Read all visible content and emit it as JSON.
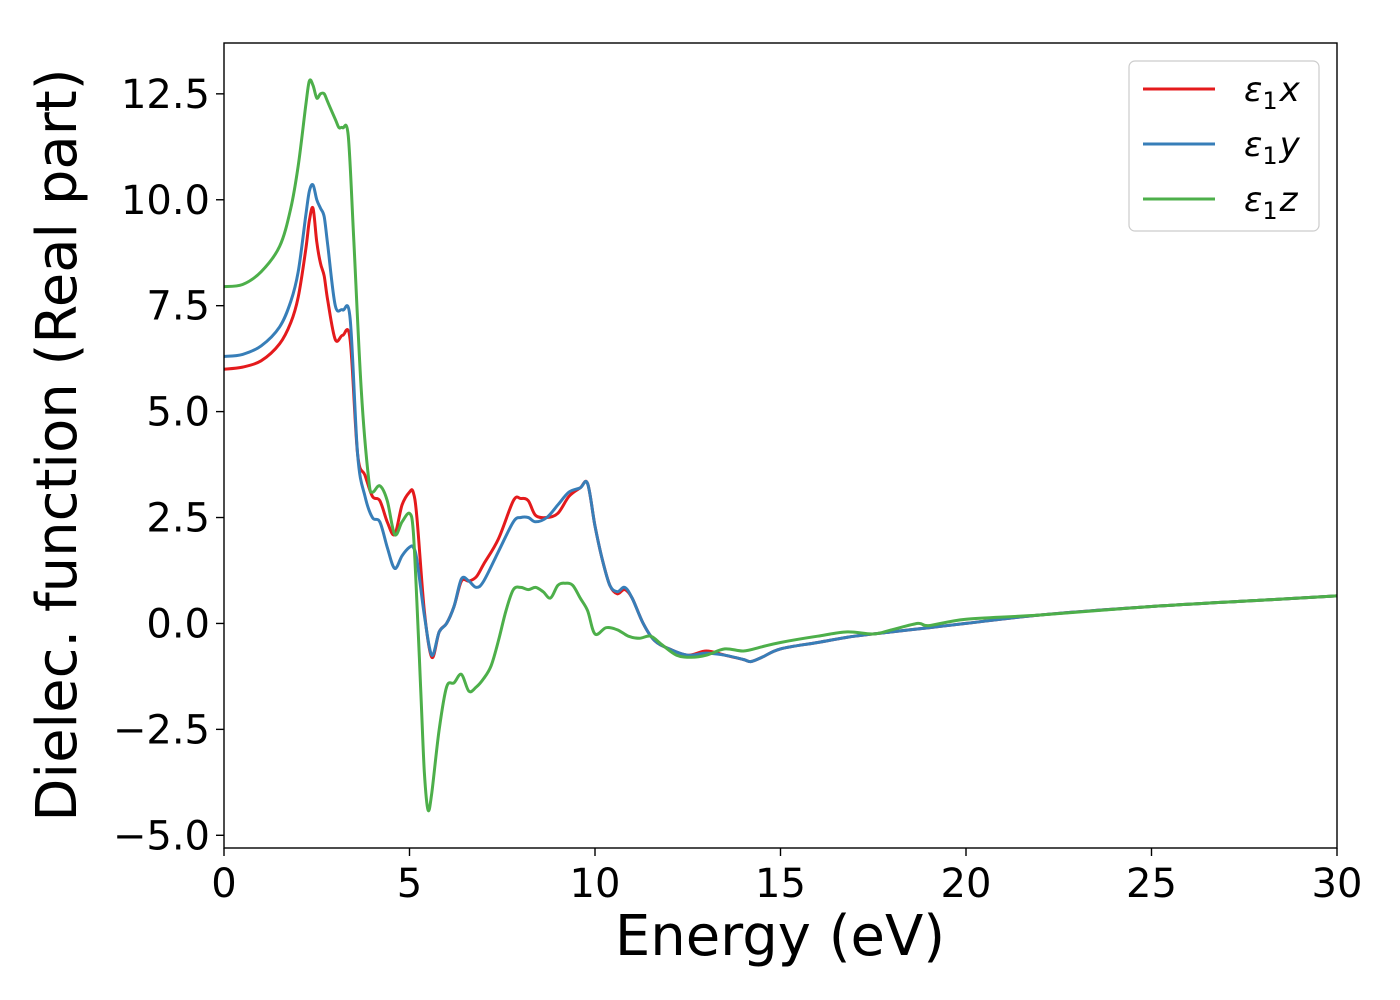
{
  "chart_data": {
    "type": "line",
    "xlabel": "Energy (eV)",
    "ylabel": "Dielec. function (Real part)",
    "xlim": [
      0,
      30
    ],
    "ylim": [
      -5.3,
      13.7
    ],
    "xticks": [
      0,
      5,
      10,
      15,
      20,
      25,
      30
    ],
    "xtick_labels": [
      "0",
      "5",
      "10",
      "15",
      "20",
      "25",
      "30"
    ],
    "yticks": [
      -5.0,
      -2.5,
      0.0,
      2.5,
      5.0,
      7.5,
      10.0,
      12.5
    ],
    "ytick_labels": [
      "−5.0",
      "−2.5",
      "0.0",
      "2.5",
      "5.0",
      "7.5",
      "10.0",
      "12.5"
    ],
    "grid": false,
    "legend_position": "top-right",
    "series": [
      {
        "name": "ε1x",
        "legend_base": "ε",
        "legend_sub": "1",
        "legend_var": "x",
        "color": "#e41a1c",
        "x": [
          0,
          0.5,
          1.0,
          1.5,
          1.8,
          2.0,
          2.2,
          2.3,
          2.4,
          2.5,
          2.6,
          2.7,
          2.8,
          3.0,
          3.2,
          3.4,
          3.6,
          3.8,
          4.0,
          4.2,
          4.4,
          4.6,
          4.8,
          5.0,
          5.1,
          5.2,
          5.4,
          5.6,
          5.8,
          6.0,
          6.2,
          6.4,
          6.6,
          6.8,
          7.0,
          7.4,
          7.8,
          8.0,
          8.2,
          8.4,
          8.7,
          9.0,
          9.3,
          9.6,
          9.8,
          10.0,
          10.2,
          10.4,
          10.6,
          10.8,
          11.0,
          11.3,
          11.6,
          12.0,
          12.5,
          13.0,
          13.5,
          14.0,
          14.2,
          14.5,
          15.0,
          16.0,
          17.0,
          18.0,
          19.0,
          20.0,
          22.0,
          25.0,
          28.0,
          30.0
        ],
        "y": [
          6.0,
          6.05,
          6.2,
          6.6,
          7.1,
          7.7,
          8.8,
          9.5,
          9.8,
          9.0,
          8.5,
          8.2,
          7.6,
          6.7,
          6.8,
          6.7,
          4.0,
          3.5,
          3.0,
          2.9,
          2.4,
          2.1,
          2.8,
          3.1,
          3.1,
          2.5,
          0.3,
          -0.8,
          -0.2,
          0.0,
          0.4,
          1.0,
          1.0,
          1.1,
          1.4,
          2.0,
          2.9,
          2.95,
          2.9,
          2.55,
          2.5,
          2.6,
          3.0,
          3.2,
          3.3,
          2.3,
          1.5,
          0.9,
          0.7,
          0.8,
          0.6,
          0.0,
          -0.4,
          -0.6,
          -0.75,
          -0.65,
          -0.75,
          -0.85,
          -0.9,
          -0.8,
          -0.6,
          -0.45,
          -0.3,
          -0.2,
          -0.1,
          0.0,
          0.2,
          0.4,
          0.55,
          0.65
        ]
      },
      {
        "name": "ε1y",
        "legend_base": "ε",
        "legend_sub": "1",
        "legend_var": "y",
        "color": "#377eb8",
        "x": [
          0,
          0.5,
          1.0,
          1.5,
          1.8,
          2.0,
          2.2,
          2.3,
          2.4,
          2.5,
          2.6,
          2.7,
          2.8,
          3.0,
          3.2,
          3.4,
          3.6,
          3.8,
          4.0,
          4.2,
          4.4,
          4.6,
          4.8,
          5.0,
          5.1,
          5.2,
          5.4,
          5.6,
          5.8,
          6.0,
          6.2,
          6.4,
          6.6,
          6.8,
          7.0,
          7.4,
          7.8,
          8.0,
          8.2,
          8.4,
          8.7,
          9.0,
          9.3,
          9.6,
          9.8,
          10.0,
          10.2,
          10.4,
          10.6,
          10.8,
          11.0,
          11.3,
          11.6,
          12.0,
          12.5,
          13.0,
          13.5,
          14.0,
          14.2,
          14.5,
          15.0,
          16.0,
          17.0,
          18.0,
          19.0,
          20.0,
          22.0,
          25.0,
          28.0,
          30.0
        ],
        "y": [
          6.3,
          6.35,
          6.55,
          7.0,
          7.6,
          8.3,
          9.6,
          10.2,
          10.35,
          10.0,
          9.8,
          9.6,
          8.9,
          7.5,
          7.4,
          7.2,
          4.0,
          3.0,
          2.5,
          2.4,
          1.8,
          1.3,
          1.6,
          1.8,
          1.8,
          1.5,
          0.2,
          -0.75,
          -0.2,
          0.0,
          0.4,
          1.05,
          1.0,
          0.85,
          1.0,
          1.7,
          2.4,
          2.5,
          2.5,
          2.4,
          2.5,
          2.8,
          3.1,
          3.2,
          3.3,
          2.3,
          1.5,
          0.9,
          0.75,
          0.85,
          0.6,
          0.0,
          -0.4,
          -0.6,
          -0.75,
          -0.7,
          -0.75,
          -0.85,
          -0.9,
          -0.8,
          -0.6,
          -0.45,
          -0.3,
          -0.2,
          -0.1,
          0.0,
          0.2,
          0.4,
          0.55,
          0.65
        ]
      },
      {
        "name": "ε1z",
        "legend_base": "ε",
        "legend_sub": "1",
        "legend_var": "z",
        "color": "#4daf4a",
        "x": [
          0,
          0.5,
          1.0,
          1.5,
          1.8,
          2.0,
          2.2,
          2.3,
          2.4,
          2.5,
          2.6,
          2.7,
          2.8,
          3.0,
          3.1,
          3.2,
          3.35,
          3.5,
          3.7,
          3.9,
          4.0,
          4.2,
          4.4,
          4.6,
          4.8,
          5.0,
          5.1,
          5.2,
          5.3,
          5.4,
          5.5,
          5.6,
          5.8,
          6.0,
          6.2,
          6.4,
          6.6,
          6.8,
          7.0,
          7.2,
          7.4,
          7.6,
          7.8,
          8.0,
          8.2,
          8.4,
          8.6,
          8.8,
          9.0,
          9.2,
          9.4,
          9.6,
          9.8,
          10.0,
          10.3,
          10.6,
          10.9,
          11.2,
          11.5,
          11.8,
          12.2,
          12.6,
          13.0,
          13.5,
          14.0,
          14.5,
          15.0,
          16.0,
          16.8,
          17.5,
          18.0,
          18.7,
          19.0,
          20.0,
          22.0,
          25.0,
          28.0,
          30.0
        ],
        "y": [
          7.95,
          8.0,
          8.3,
          8.9,
          9.8,
          10.8,
          12.2,
          12.8,
          12.7,
          12.4,
          12.5,
          12.5,
          12.3,
          11.9,
          11.7,
          11.7,
          11.5,
          9.0,
          5.5,
          3.4,
          3.1,
          3.25,
          2.9,
          2.1,
          2.4,
          2.6,
          2.2,
          0.5,
          -1.5,
          -3.5,
          -4.4,
          -4.0,
          -2.5,
          -1.5,
          -1.4,
          -1.2,
          -1.6,
          -1.5,
          -1.3,
          -1.0,
          -0.4,
          0.3,
          0.8,
          0.85,
          0.8,
          0.85,
          0.75,
          0.6,
          0.9,
          0.95,
          0.9,
          0.6,
          0.3,
          -0.25,
          -0.1,
          -0.15,
          -0.3,
          -0.35,
          -0.3,
          -0.5,
          -0.75,
          -0.8,
          -0.75,
          -0.6,
          -0.65,
          -0.55,
          -0.45,
          -0.3,
          -0.2,
          -0.25,
          -0.15,
          0.0,
          -0.05,
          0.1,
          0.2,
          0.4,
          0.55,
          0.65
        ]
      }
    ]
  }
}
